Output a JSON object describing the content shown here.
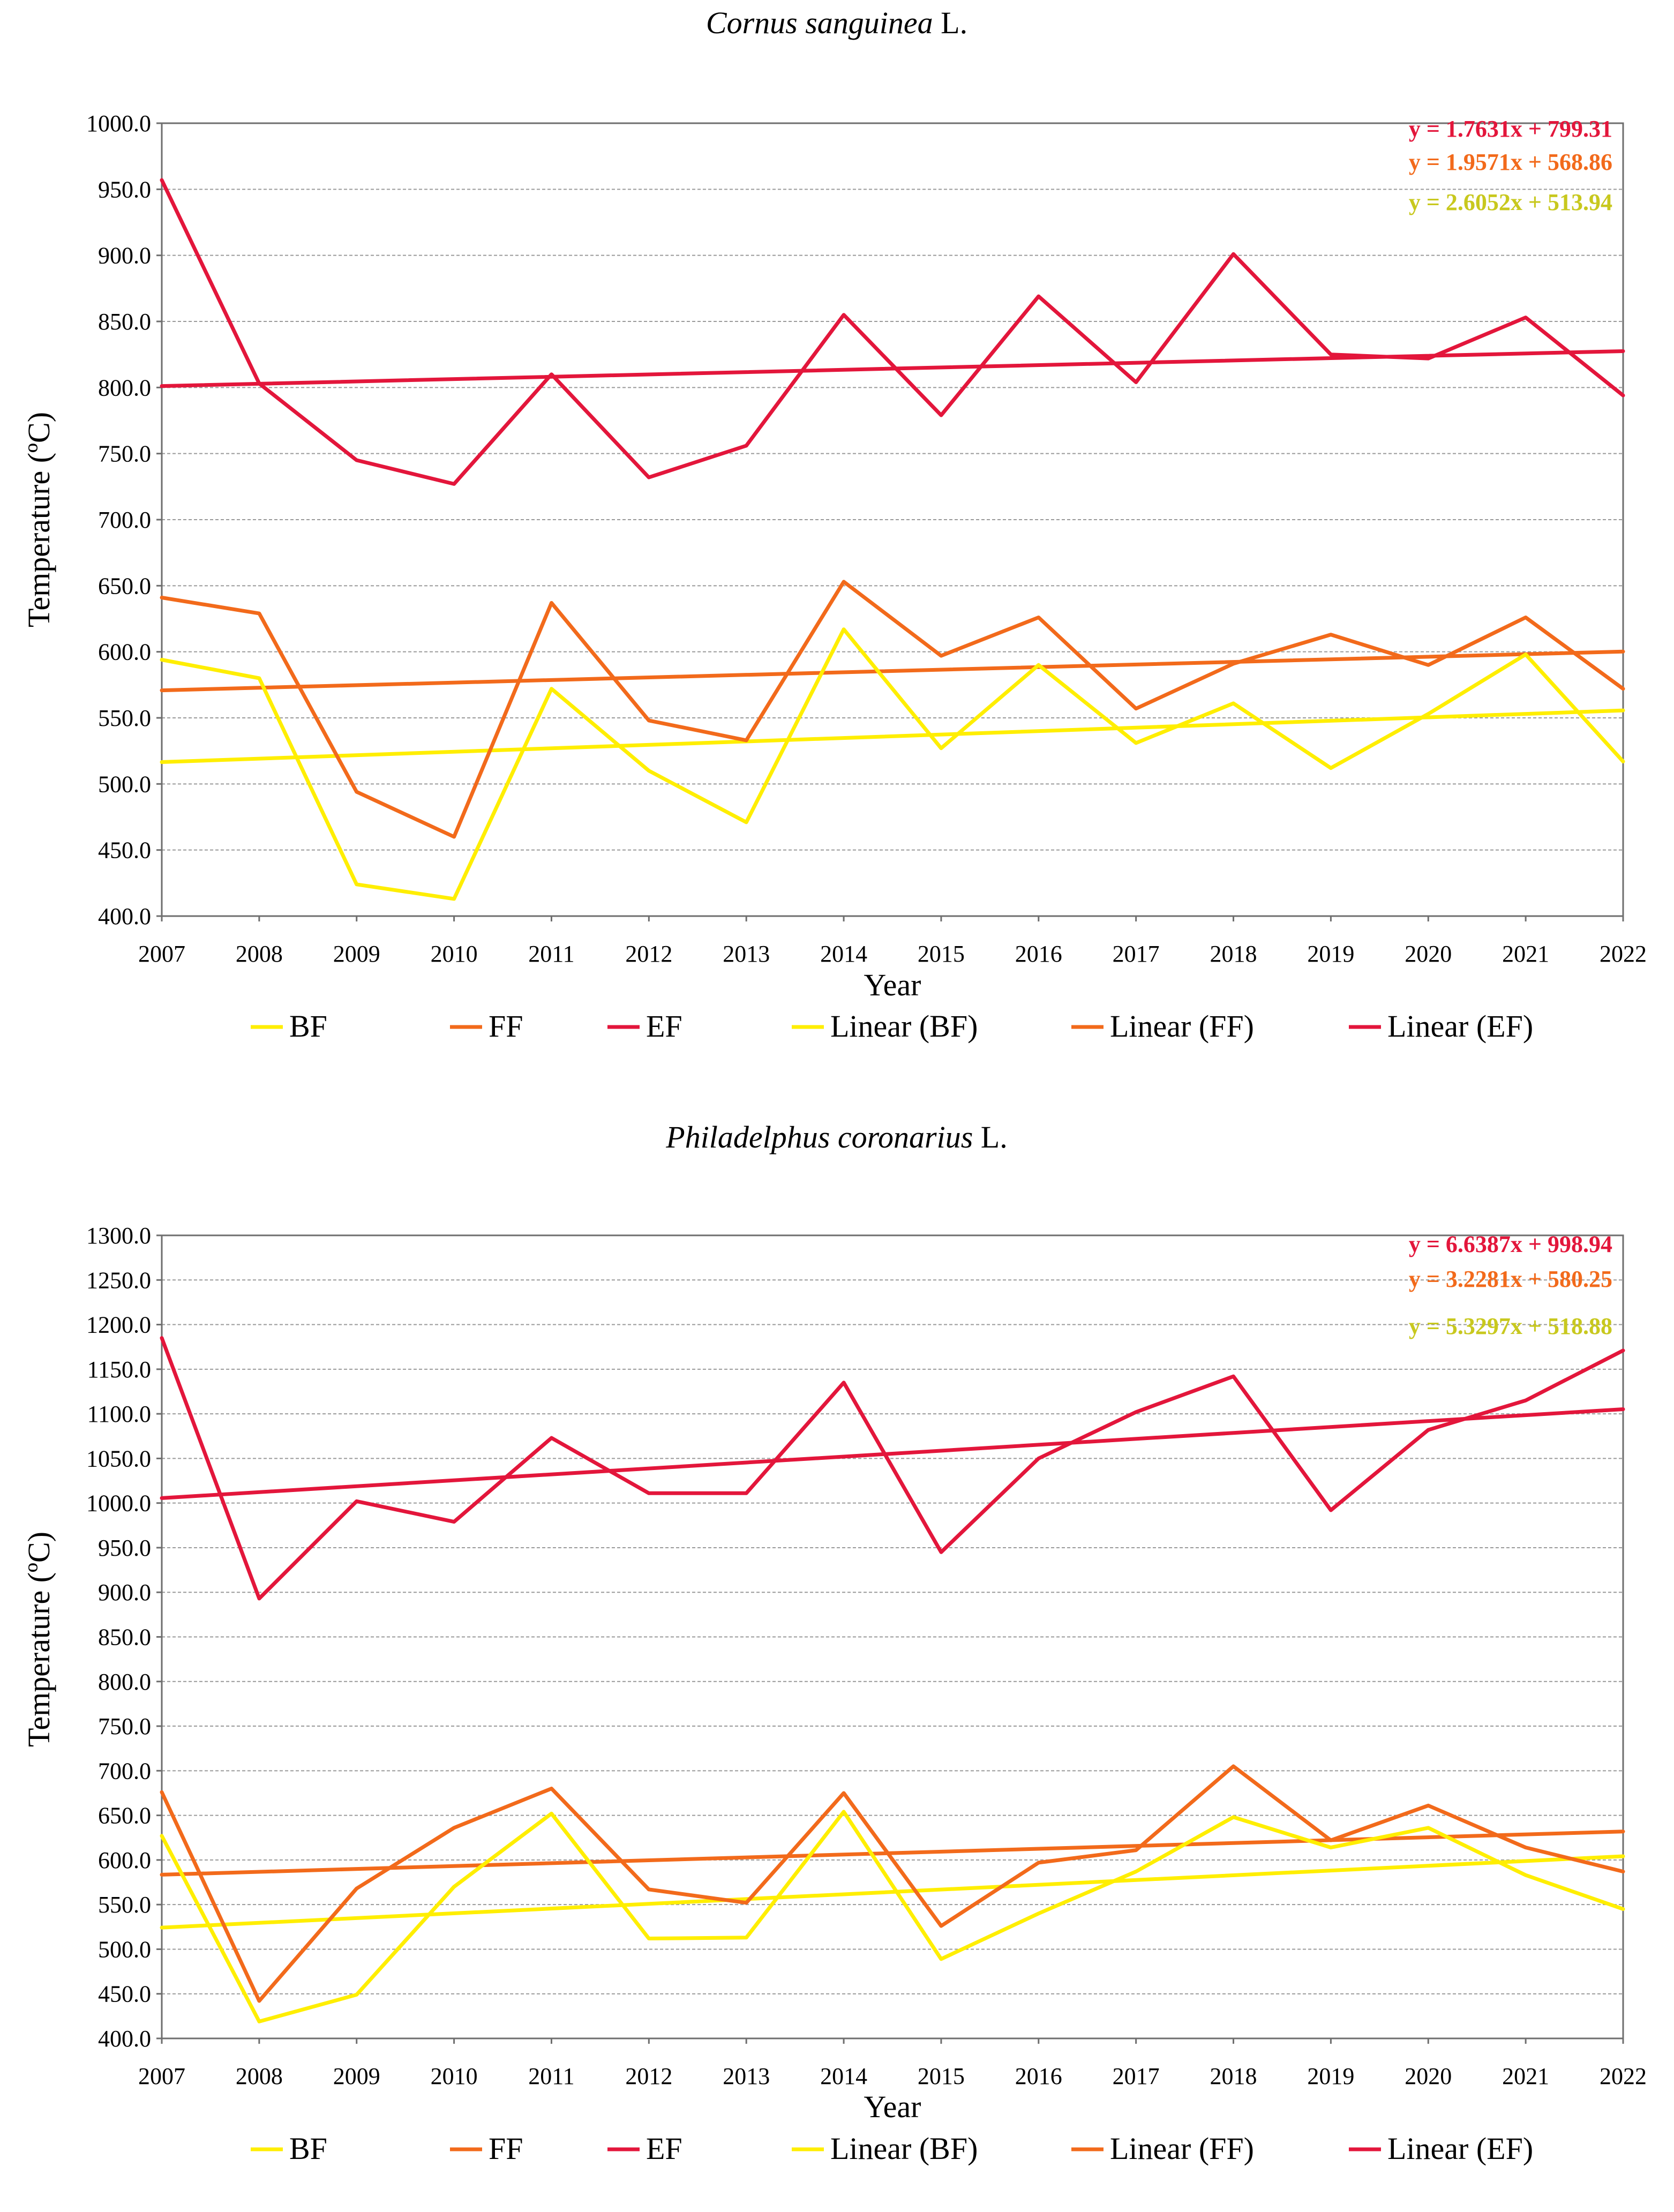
{
  "colors": {
    "BF": "#ffee00",
    "FF": "#f26a1b",
    "EF": "#e3163b",
    "eq_BF": "#c8c81e"
  },
  "chart_data": [
    {
      "type": "line",
      "title": "Cornus sanguinea",
      "title_suffix": " L.",
      "xlabel": "Year",
      "ylabel": "Temperature   (ºC)",
      "x": [
        2007,
        2008,
        2009,
        2010,
        2011,
        2012,
        2013,
        2014,
        2015,
        2016,
        2017,
        2018,
        2019,
        2020,
        2021,
        2022
      ],
      "ylim": [
        400.0,
        1000.0
      ],
      "yticks": [
        "400.0",
        "450.0",
        "500.0",
        "550.0",
        "600.0",
        "650.0",
        "700.0",
        "750.0",
        "800.0",
        "850.0",
        "900.0",
        "950.0",
        "1000.0"
      ],
      "grid": true,
      "legend_position": "bottom",
      "series": [
        {
          "name": "BF",
          "values": [
            594,
            580,
            424,
            413,
            572,
            510,
            471,
            617,
            527,
            590,
            531,
            561,
            512,
            553,
            598,
            517
          ]
        },
        {
          "name": "FF",
          "values": [
            641,
            629,
            494,
            460,
            637,
            548,
            533,
            653,
            597,
            626,
            557,
            591,
            613,
            590,
            626,
            572
          ]
        },
        {
          "name": "EF",
          "values": [
            957,
            803,
            745,
            727,
            810,
            732,
            756,
            855,
            779,
            869,
            804,
            901,
            825,
            822,
            853,
            794
          ]
        }
      ],
      "trendlines": [
        {
          "name": "Linear (BF)",
          "slope": 2.6052,
          "intercept": 513.94,
          "equation": "y = 2.6052x + 513.94"
        },
        {
          "name": "Linear (FF)",
          "slope": 1.9571,
          "intercept": 568.86,
          "equation": "y = 1.9571x + 568.86"
        },
        {
          "name": "Linear (EF)",
          "slope": 1.7631,
          "intercept": 799.31,
          "equation": "y = 1.7631x + 799.31"
        }
      ],
      "legend": [
        "BF",
        "FF",
        "EF",
        "Linear (BF)",
        "Linear (FF)",
        "Linear (EF)"
      ]
    },
    {
      "type": "line",
      "title": "Philadelphus coronarius",
      "title_suffix": " L.",
      "xlabel": "Year",
      "ylabel": "Temperature   (ºC)",
      "x": [
        2007,
        2008,
        2009,
        2010,
        2011,
        2012,
        2013,
        2014,
        2015,
        2016,
        2017,
        2018,
        2019,
        2020,
        2021,
        2022
      ],
      "ylim": [
        400.0,
        1300.0
      ],
      "yticks": [
        "400.0",
        "450.0",
        "500.0",
        "550.0",
        "600.0",
        "650.0",
        "700.0",
        "750.0",
        "800.0",
        "850.0",
        "900.0",
        "950.0",
        "1000.0",
        "1050.0",
        "1100.0",
        "1150.0",
        "1200.0",
        "1250.0",
        "1300.0"
      ],
      "grid": true,
      "legend_position": "bottom",
      "series": [
        {
          "name": "BF",
          "values": [
            627,
            419,
            449,
            570,
            652,
            512,
            513,
            654,
            489,
            540,
            587,
            648,
            614,
            636,
            583,
            545
          ]
        },
        {
          "name": "FF",
          "values": [
            676,
            442,
            568,
            636,
            680,
            567,
            552,
            675,
            526,
            597,
            611,
            705,
            622,
            661,
            614,
            587
          ]
        },
        {
          "name": "EF",
          "values": [
            1185,
            893,
            1002,
            979,
            1073,
            1011,
            1011,
            1135,
            945,
            1050,
            1102,
            1142,
            992,
            1082,
            1115,
            1171
          ]
        }
      ],
      "trendlines": [
        {
          "name": "Linear (BF)",
          "slope": 5.3297,
          "intercept": 518.88,
          "equation": "y = 5.3297x + 518.88"
        },
        {
          "name": "Linear (FF)",
          "slope": 3.2281,
          "intercept": 580.25,
          "equation": "y = 3.2281x + 580.25"
        },
        {
          "name": "Linear (EF)",
          "slope": 6.6387,
          "intercept": 998.94,
          "equation": "y = 6.6387x + 998.94"
        }
      ],
      "legend": [
        "BF",
        "FF",
        "EF",
        "Linear (BF)",
        "Linear (FF)",
        "Linear (EF)"
      ]
    }
  ]
}
